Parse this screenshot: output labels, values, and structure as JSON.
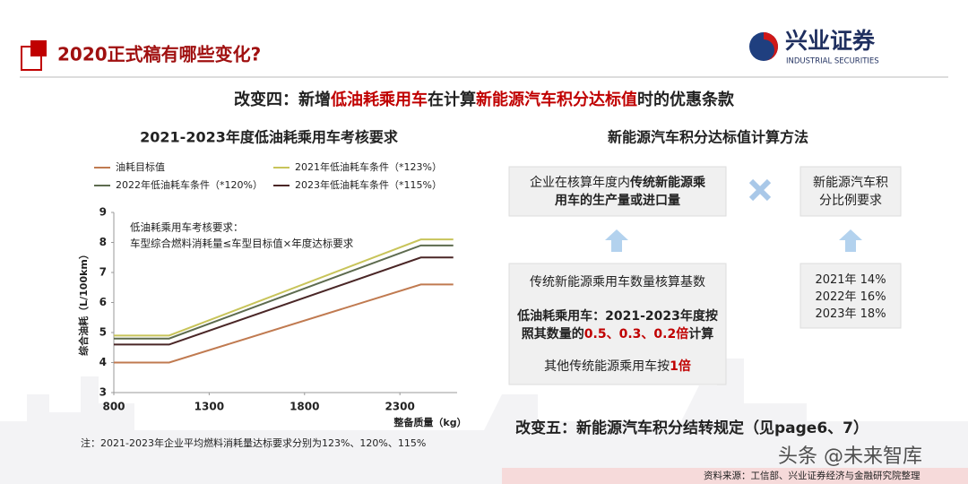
{
  "header": {
    "title": "2020正式稿有哪些变化?",
    "logo_name": "兴业证券",
    "logo_sub": "INDUSTRIAL SECURITIES"
  },
  "subtitle": [
    {
      "text": "改变四：新增"
    },
    {
      "text": "低油耗乘用车",
      "color": "#c00000"
    },
    {
      "text": "在计算"
    },
    {
      "text": "新能源汽车积分达标值",
      "color": "#c00000"
    },
    {
      "text": "时的优惠条款"
    }
  ],
  "chart_data": {
    "type": "line",
    "title": "2021-2023年度低油耗乘用车考核要求",
    "annotations": [
      "低油耗乘用车考核要求：",
      "车型综合燃料消耗量≤车型目标值×年度达标要求"
    ],
    "x_label": "整备质量（kg）",
    "y_label": "综合油耗（L/100km）",
    "x": [
      800,
      1090,
      2410,
      2580
    ],
    "series": [
      {
        "name": "油耗目标值",
        "color": "#c07a50",
        "values": [
          4.0,
          4.0,
          6.6,
          6.6
        ]
      },
      {
        "name": "2021年低油耗车条件（*123%）",
        "color": "#c8c45a",
        "values": [
          4.9,
          4.9,
          8.1,
          8.1
        ]
      },
      {
        "name": "2022年低油耗车条件（*120%）",
        "color": "#5d6b4f",
        "values": [
          4.8,
          4.8,
          7.9,
          7.9
        ]
      },
      {
        "name": "2023年低油耗车条件（*115%）",
        "color": "#4a2626",
        "values": [
          4.6,
          4.6,
          7.5,
          7.5
        ]
      }
    ],
    "xlim": [
      800,
      2600
    ],
    "ylim": [
      3,
      9
    ],
    "xticks": [
      800,
      1300,
      1800,
      2300
    ],
    "yticks": [
      3,
      4,
      5,
      6,
      7,
      8,
      9
    ],
    "note": "注：2021-2023年企业平均燃料消耗量达标要求分别为123%、120%、115%"
  },
  "method": {
    "title": "新能源汽车积分达标值计算方法",
    "box1": [
      [
        {
          "text": "企业在核算年度内"
        },
        {
          "text": "传统新能源乘",
          "bold": true
        }
      ],
      [
        {
          "text": "用车的生产量或进口量",
          "bold": true
        }
      ]
    ],
    "box2": [
      [
        {
          "text": "新能源汽车积"
        }
      ],
      [
        {
          "text": "分比例要求"
        }
      ]
    ],
    "box3": [
      [
        {
          "text": "传统新能源乘用车数量核算基数"
        }
      ],
      [
        {
          "text": "低油耗乘用车：2021-2023年度按",
          "bold": true
        }
      ],
      [
        {
          "text": "照其数量的",
          "bold": true
        },
        {
          "text": "0.5、0.3、0.2倍",
          "bold": true,
          "color": "#c00000"
        },
        {
          "text": "计算",
          "bold": true
        }
      ],
      [
        {
          "text": "其他传统能源乘用车按"
        },
        {
          "text": "1倍",
          "bold": true,
          "color": "#c00000"
        }
      ]
    ],
    "box4": [
      [
        {
          "text": "2021年 14%"
        }
      ],
      [
        {
          "text": "2022年 16%"
        }
      ],
      [
        {
          "text": "2023年 18%"
        }
      ]
    ]
  },
  "change_five": "改变五：新能源汽车积分结转规定（见page6、7）",
  "source": "资料来源：工信部、兴业证券经济与金融研究院整理",
  "watermark": "头条 @未来智库"
}
